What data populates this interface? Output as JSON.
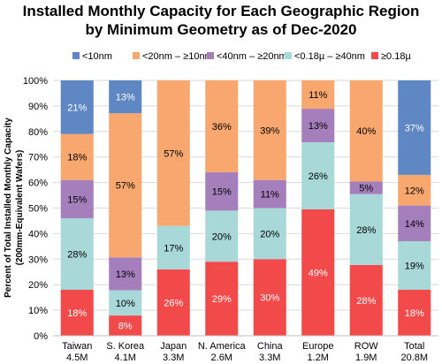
{
  "chart_data": {
    "type": "bar",
    "stacked": true,
    "title": "Installed Monthly Capacity for Each Geographic Region",
    "subtitle": "by Minimum Geometry as of Dec-2020",
    "ylabel_line1": "Percent of Total Installed Monthly Capacity",
    "ylabel_line2": "(200mm-Equivalent Wafers)",
    "ylim": [
      0,
      100
    ],
    "y_ticks": [
      "0%",
      "10%",
      "20%",
      "30%",
      "40%",
      "50%",
      "60%",
      "70%",
      "80%",
      "90%",
      "100%"
    ],
    "grid": true,
    "legend_position": "top",
    "categories": [
      "Taiwan",
      "S. Korea",
      "Japan",
      "N. America",
      "China",
      "Europe",
      "ROW",
      "Total"
    ],
    "category_totals": [
      "4.5M",
      "4.1M",
      "3.3M",
      "2.6M",
      "3.3M",
      "1.2M",
      "1.9M",
      "20.8M"
    ],
    "series": [
      {
        "name": "≥0.18µ",
        "color": "#f24a4a",
        "values": [
          18,
          8,
          26,
          29,
          30,
          49,
          28,
          18
        ],
        "labels": [
          "18%",
          "8%",
          "26%",
          "29%",
          "30%",
          "49%",
          "28%",
          "18%"
        ]
      },
      {
        "name": "<0.18µ – ≥40nm",
        "color": "#a8d8d8",
        "values": [
          28,
          10,
          17,
          20,
          20,
          26,
          28,
          19
        ],
        "labels": [
          "28%",
          "10%",
          "17%",
          "20%",
          "20%",
          "26%",
          "28%",
          "19%"
        ]
      },
      {
        "name": "<40nm – ≥20nm",
        "color": "#a57fbc",
        "values": [
          15,
          13,
          0,
          15,
          11,
          13,
          5,
          14
        ],
        "labels": [
          "15%",
          "13%",
          "",
          "15%",
          "11%",
          "13%",
          "5%",
          "14%"
        ]
      },
      {
        "name": "<20nm – ≥10nm",
        "color": "#f8a86e",
        "values": [
          18,
          57,
          57,
          36,
          39,
          11,
          40,
          12
        ],
        "labels": [
          "18%",
          "57%",
          "57%",
          "36%",
          "39%",
          "11%",
          "40%",
          "12%"
        ]
      },
      {
        "name": "<10nm",
        "color": "#5f87c4",
        "values": [
          21,
          13,
          0,
          0,
          0,
          0,
          0,
          37
        ],
        "labels": [
          "21%",
          "13%",
          "",
          "",
          "",
          "",
          "",
          "37%"
        ]
      }
    ]
  }
}
